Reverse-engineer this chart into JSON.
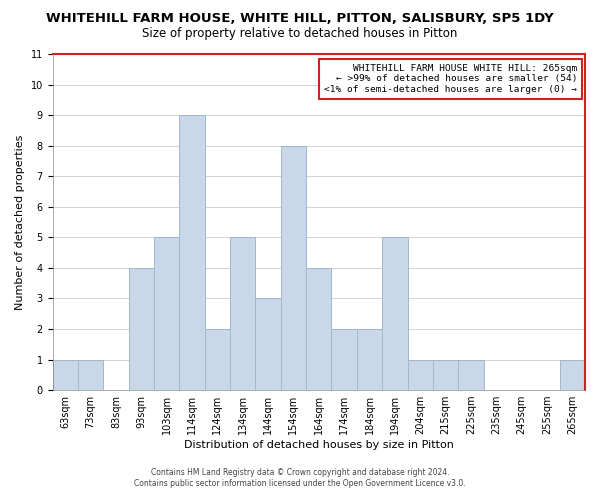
{
  "title": "WHITEHILL FARM HOUSE, WHITE HILL, PITTON, SALISBURY, SP5 1DY",
  "subtitle": "Size of property relative to detached houses in Pitton",
  "xlabel": "Distribution of detached houses by size in Pitton",
  "ylabel": "Number of detached properties",
  "bin_labels": [
    "63sqm",
    "73sqm",
    "83sqm",
    "93sqm",
    "103sqm",
    "114sqm",
    "124sqm",
    "134sqm",
    "144sqm",
    "154sqm",
    "164sqm",
    "174sqm",
    "184sqm",
    "194sqm",
    "204sqm",
    "215sqm",
    "225sqm",
    "235sqm",
    "245sqm",
    "255sqm",
    "265sqm"
  ],
  "values": [
    1,
    1,
    0,
    4,
    5,
    9,
    2,
    5,
    3,
    8,
    4,
    2,
    2,
    5,
    1,
    1,
    1,
    0,
    0,
    0,
    1
  ],
  "bar_color": "#c8d8e8",
  "bar_edgecolor": "#a0b8d0",
  "highlight_edgecolor": "#cc2222",
  "ylim": [
    0,
    11
  ],
  "yticks": [
    0,
    1,
    2,
    3,
    4,
    5,
    6,
    7,
    8,
    9,
    10,
    11
  ],
  "annotation_box_text": [
    "WHITEHILL FARM HOUSE WHITE HILL: 265sqm",
    "← >99% of detached houses are smaller (54)",
    "<1% of semi-detached houses are larger (0) →"
  ],
  "annotation_box_edgecolor": "#cc2222",
  "footer_line1": "Contains HM Land Registry data © Crown copyright and database right 2024.",
  "footer_line2": "Contains public sector information licensed under the Open Government Licence v3.0.",
  "background_color": "#ffffff",
  "plot_bg_color": "#ffffff",
  "grid_color": "#cccccc",
  "title_fontsize": 9.5,
  "subtitle_fontsize": 8.5,
  "axis_label_fontsize": 8,
  "tick_fontsize": 7
}
